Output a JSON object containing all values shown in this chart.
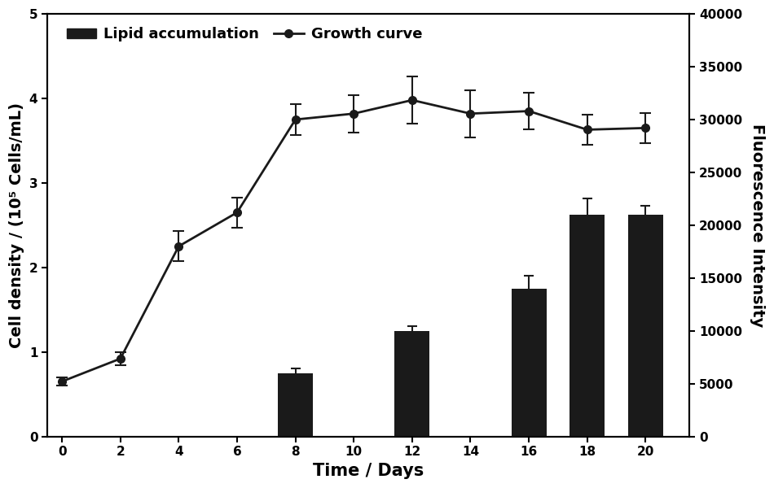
{
  "growth_x": [
    0,
    2,
    4,
    6,
    8,
    10,
    12,
    14,
    16,
    18,
    20
  ],
  "growth_y": [
    0.65,
    0.92,
    2.25,
    2.65,
    3.75,
    3.82,
    3.98,
    3.82,
    3.85,
    3.63,
    3.65
  ],
  "growth_yerr": [
    0.05,
    0.08,
    0.18,
    0.18,
    0.18,
    0.22,
    0.28,
    0.28,
    0.22,
    0.18,
    0.18
  ],
  "bar_x": [
    8,
    12,
    16,
    18,
    20
  ],
  "bar_heights_fi": [
    6000,
    10000,
    14000,
    21000,
    21000
  ],
  "bar_yerr_fi": [
    400,
    400,
    1200,
    1500,
    800
  ],
  "bar_width": 1.2,
  "bar_color": "#1a1a1a",
  "line_color": "#1a1a1a",
  "marker_color": "#1a1a1a",
  "left_ylabel": "Cell density / (10⁵ Cells/mL)",
  "right_ylabel": "Fluorescence Intensity",
  "xlabel": "Time / Days",
  "left_ylim": [
    0,
    5
  ],
  "right_ylim": [
    0,
    40000
  ],
  "left_yticks": [
    0,
    1,
    2,
    3,
    4,
    5
  ],
  "right_yticks": [
    0,
    5000,
    10000,
    15000,
    20000,
    25000,
    30000,
    35000,
    40000
  ],
  "xticks": [
    0,
    2,
    4,
    6,
    8,
    10,
    12,
    14,
    16,
    18,
    20
  ],
  "xlim": [
    -0.5,
    21.5
  ],
  "legend_lipid": "Lipid accumulation",
  "legend_growth": "Growth curve",
  "bg_color": "#ffffff",
  "font_size": 13,
  "label_fontsize": 14
}
